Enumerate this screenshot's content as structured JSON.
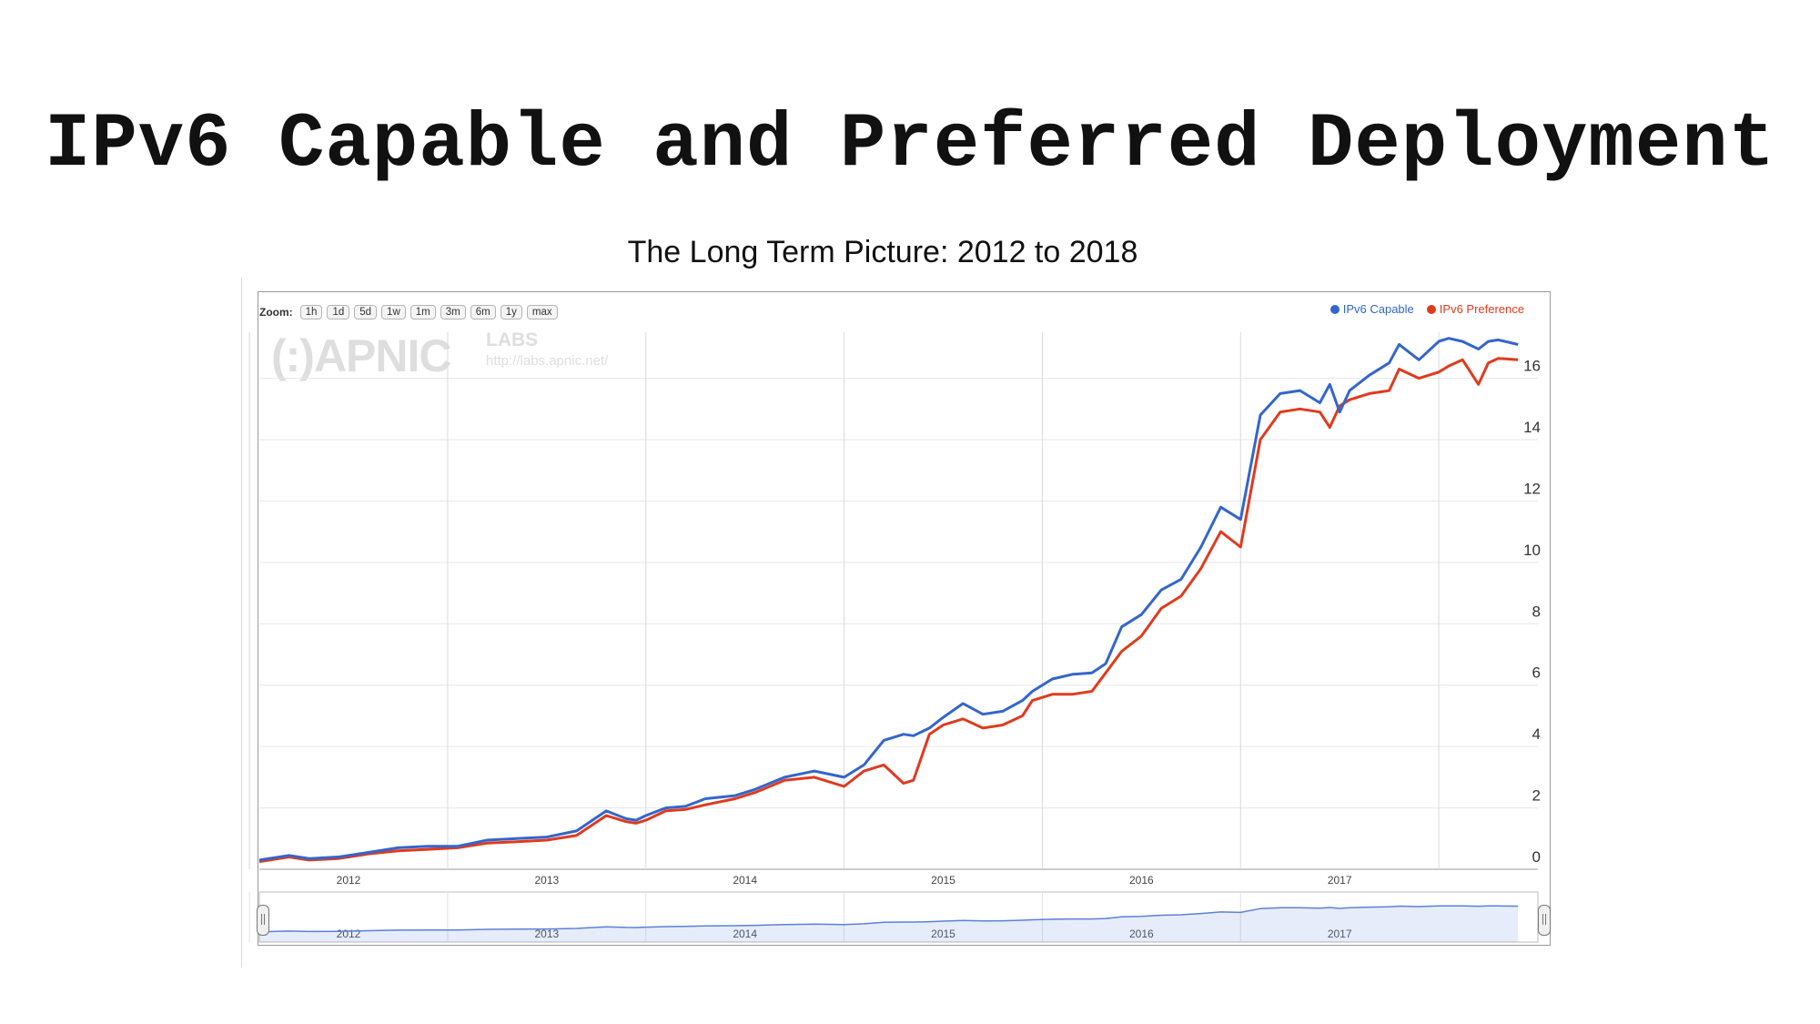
{
  "slide": {
    "title": "IPv6 Capable and Preferred Deployment",
    "subtitle": "The Long Term Picture: 2012 to 2018"
  },
  "zoom": {
    "label": "Zoom:",
    "buttons": [
      "1h",
      "1d",
      "5d",
      "1w",
      "1m",
      "3m",
      "6m",
      "1y",
      "max"
    ]
  },
  "watermark": {
    "logo": "(:)APNIC",
    "labs": "LABS",
    "url": "http://labs.apnic.net/"
  },
  "chart_data": {
    "type": "line",
    "title": "",
    "xlabel": "",
    "ylabel": "",
    "x_ticks": [
      "2012",
      "2013",
      "2014",
      "2015",
      "2016",
      "2017"
    ],
    "y_ticks": [
      "0",
      "2",
      "4",
      "6",
      "8",
      "10",
      "12",
      "14",
      "16"
    ],
    "ylim": [
      0,
      17.5
    ],
    "xlim": [
      2011.55,
      2018.0
    ],
    "grid": true,
    "legend_position": "top-right",
    "x": [
      2011.55,
      2011.7,
      2011.8,
      2011.95,
      2012.1,
      2012.25,
      2012.4,
      2012.55,
      2012.7,
      2012.85,
      2013.0,
      2013.15,
      2013.3,
      2013.4,
      2013.45,
      2013.5,
      2013.6,
      2013.7,
      2013.8,
      2013.95,
      2014.05,
      2014.2,
      2014.35,
      2014.5,
      2014.6,
      2014.7,
      2014.8,
      2014.85,
      2014.93,
      2015.0,
      2015.1,
      2015.2,
      2015.3,
      2015.4,
      2015.45,
      2015.55,
      2015.65,
      2015.75,
      2015.82,
      2015.9,
      2016.0,
      2016.1,
      2016.2,
      2016.3,
      2016.4,
      2016.5,
      2016.6,
      2016.7,
      2016.8,
      2016.9,
      2016.95,
      2017.0,
      2017.05,
      2017.15,
      2017.25,
      2017.3,
      2017.4,
      2017.5,
      2017.55,
      2017.62,
      2017.7,
      2017.75,
      2017.8,
      2017.9
    ],
    "series": [
      {
        "name": "IPv6 Capable",
        "color": "#3366cc",
        "values": [
          0.3,
          0.45,
          0.35,
          0.4,
          0.55,
          0.7,
          0.75,
          0.75,
          0.95,
          1.0,
          1.05,
          1.25,
          1.9,
          1.65,
          1.6,
          1.75,
          2.0,
          2.05,
          2.3,
          2.4,
          2.6,
          3.0,
          3.2,
          3.0,
          3.4,
          4.2,
          4.4,
          4.35,
          4.6,
          4.95,
          5.4,
          5.05,
          5.15,
          5.5,
          5.8,
          6.2,
          6.35,
          6.4,
          6.7,
          7.9,
          8.3,
          9.1,
          9.45,
          10.5,
          11.8,
          11.4,
          14.8,
          15.5,
          15.6,
          15.2,
          15.8,
          14.9,
          15.6,
          16.1,
          16.5,
          17.1,
          16.6,
          17.2,
          17.3,
          17.2,
          16.95,
          17.2,
          17.25,
          17.1
        ]
      },
      {
        "name": "IPv6 Preference",
        "color": "#e03a1e",
        "values": [
          0.25,
          0.4,
          0.3,
          0.35,
          0.5,
          0.6,
          0.65,
          0.7,
          0.85,
          0.9,
          0.95,
          1.1,
          1.75,
          1.55,
          1.5,
          1.6,
          1.9,
          1.95,
          2.1,
          2.3,
          2.5,
          2.9,
          3.0,
          2.7,
          3.2,
          3.4,
          2.8,
          2.9,
          4.4,
          4.7,
          4.9,
          4.6,
          4.7,
          5.0,
          5.5,
          5.7,
          5.7,
          5.8,
          6.4,
          7.1,
          7.6,
          8.5,
          8.9,
          9.8,
          11.0,
          10.5,
          14.0,
          14.9,
          15.0,
          14.9,
          14.4,
          15.1,
          15.3,
          15.5,
          15.6,
          16.3,
          16.0,
          16.2,
          16.4,
          16.6,
          15.8,
          16.5,
          16.65,
          16.6
        ]
      }
    ],
    "navigator": {
      "x_ticks": [
        "2012",
        "2013",
        "2014",
        "2015",
        "2016",
        "2017"
      ]
    }
  }
}
